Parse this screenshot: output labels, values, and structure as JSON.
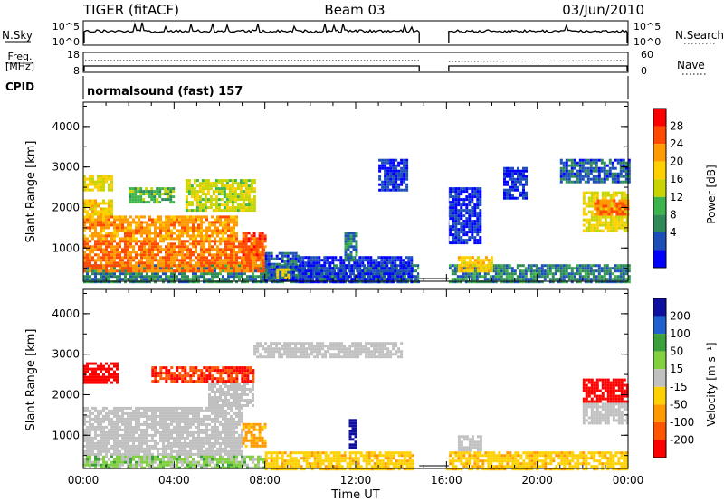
{
  "header": {
    "radar": "TIGER (fitACF)",
    "beam": "Beam 03",
    "date": "03/Jun/2010"
  },
  "panels": {
    "nsky": {
      "label": "N.Sky",
      "left_ticks": [
        "10^5",
        "10^0"
      ],
      "right_label": "N.Search",
      "right_ticks": [
        "10^5",
        "10^0"
      ]
    },
    "freq": {
      "label_line1": "Freq.",
      "label_line2": "[MHz]",
      "left_ticks": [
        "18",
        "8"
      ],
      "right_label": "Nave",
      "right_ticks": [
        "60",
        "0"
      ]
    },
    "cpid": {
      "label": "CPID",
      "value": "normalsound (fast) 157"
    },
    "power": {
      "ylabel": "Slant Range [km]",
      "cbar_label": "Power [dB]",
      "cbar_ticks": [
        "28",
        "24",
        "20",
        "16",
        "12",
        "8",
        "4"
      ],
      "cbar_colors": [
        "#ff0000",
        "#ff4a00",
        "#ff9a00",
        "#ffd000",
        "#c8d400",
        "#3cb44b",
        "#2e8b57",
        "#1c4fb8",
        "#0000ff"
      ]
    },
    "velocity": {
      "ylabel": "Slant Range [km]",
      "cbar_label": "Velocity [m s⁻¹]",
      "cbar_ticks": [
        "200",
        "100",
        "50",
        "15",
        "-15",
        "-50",
        "-100",
        "-200"
      ],
      "cbar_colors": [
        "#1010a0",
        "#2060d0",
        "#3aa03a",
        "#80d040",
        "#c0c0c0",
        "#ffd000",
        "#ff9900",
        "#ff5500",
        "#ff0000"
      ]
    },
    "colors": {
      "ground_scatter": "#b8b8b8"
    }
  },
  "chart_data": [
    {
      "type": "heatmap",
      "name": "power",
      "xlabel": "Time UT",
      "ylabel": "Slant Range [km]",
      "xlim": [
        0,
        24
      ],
      "ylim": [
        180,
        4600
      ],
      "xticks": [
        "00:00",
        "04:00",
        "08:00",
        "12:00",
        "16:00",
        "20:00",
        "00:00"
      ],
      "yticks": [
        1000,
        2000,
        3000,
        4000
      ],
      "data_gap_hours": [
        14.8,
        16.1
      ],
      "regions": [
        {
          "t0": 0.0,
          "t1": 14.8,
          "r0": 180,
          "r1": 600,
          "level": 8
        },
        {
          "t0": 16.1,
          "t1": 24.0,
          "r0": 180,
          "r1": 600,
          "level": 8
        },
        {
          "t0": 0.0,
          "t1": 8.0,
          "r0": 400,
          "r1": 1200,
          "level": 26
        },
        {
          "t0": 0.0,
          "t1": 6.8,
          "r0": 1200,
          "r1": 1800,
          "level": 24
        },
        {
          "t0": 0.0,
          "t1": 1.3,
          "r0": 1800,
          "r1": 2200,
          "level": 20
        },
        {
          "t0": 7.0,
          "t1": 8.0,
          "r0": 700,
          "r1": 1400,
          "level": 28
        },
        {
          "t0": 0.0,
          "t1": 1.3,
          "r0": 2400,
          "r1": 2800,
          "level": 18
        },
        {
          "t0": 4.5,
          "t1": 7.5,
          "r0": 1900,
          "r1": 2700,
          "level": 16
        },
        {
          "t0": 2.0,
          "t1": 4.0,
          "r0": 2100,
          "r1": 2500,
          "level": 12
        },
        {
          "t0": 8.0,
          "t1": 9.5,
          "r0": 180,
          "r1": 900,
          "level": 6
        },
        {
          "t0": 8.5,
          "t1": 9.0,
          "r0": 250,
          "r1": 500,
          "level": 20
        },
        {
          "t0": 9.5,
          "t1": 14.5,
          "r0": 180,
          "r1": 800,
          "level": 4
        },
        {
          "t0": 11.5,
          "t1": 12.0,
          "r0": 700,
          "r1": 1400,
          "level": 8
        },
        {
          "t0": 13.0,
          "t1": 14.3,
          "r0": 2400,
          "r1": 3200,
          "level": 4
        },
        {
          "t0": 16.5,
          "t1": 18.0,
          "r0": 400,
          "r1": 800,
          "level": 20
        },
        {
          "t0": 16.0,
          "t1": 17.5,
          "r0": 1100,
          "r1": 2500,
          "level": 4
        },
        {
          "t0": 18.5,
          "t1": 19.5,
          "r0": 2200,
          "r1": 3000,
          "level": 4
        },
        {
          "t0": 22.0,
          "t1": 24.0,
          "r0": 1400,
          "r1": 2400,
          "level": 18
        },
        {
          "t0": 22.5,
          "t1": 24.0,
          "r0": 1800,
          "r1": 2200,
          "level": 26
        },
        {
          "t0": 21.0,
          "t1": 24.0,
          "r0": 2600,
          "r1": 3200,
          "level": 6
        }
      ]
    },
    {
      "type": "heatmap",
      "name": "velocity",
      "xlabel": "Time UT",
      "ylabel": "Slant Range [km]",
      "xlim": [
        0,
        24
      ],
      "ylim": [
        180,
        4600
      ],
      "xticks": [
        "00:00",
        "04:00",
        "08:00",
        "12:00",
        "16:00",
        "20:00",
        "00:00"
      ],
      "yticks": [
        1000,
        2000,
        3000,
        4000
      ],
      "data_gap_hours": [
        14.8,
        16.1
      ],
      "regions": [
        {
          "t0": 0.0,
          "t1": 7.0,
          "r0": 500,
          "r1": 1700,
          "level": 0
        },
        {
          "t0": 0.0,
          "t1": 1.5,
          "r0": 2300,
          "r1": 2800,
          "level": -180
        },
        {
          "t0": 3.0,
          "t1": 7.5,
          "r0": 2300,
          "r1": 2700,
          "level": -150
        },
        {
          "t0": 5.5,
          "t1": 7.5,
          "r0": 1700,
          "r1": 2300,
          "level": 0
        },
        {
          "t0": 7.0,
          "t1": 8.0,
          "r0": 700,
          "r1": 1300,
          "level": -60
        },
        {
          "t0": 0.0,
          "t1": 8.0,
          "r0": 180,
          "r1": 500,
          "level": 20
        },
        {
          "t0": 8.0,
          "t1": 14.5,
          "r0": 180,
          "r1": 600,
          "level": -40
        },
        {
          "t0": 11.7,
          "t1": 12.0,
          "r0": 700,
          "r1": 1400,
          "level": 200
        },
        {
          "t0": 16.0,
          "t1": 24.0,
          "r0": 180,
          "r1": 600,
          "level": -40
        },
        {
          "t0": 16.5,
          "t1": 17.5,
          "r0": 600,
          "r1": 1000,
          "level": 0
        },
        {
          "t0": 22.0,
          "t1": 24.0,
          "r0": 1800,
          "r1": 2400,
          "level": -200
        },
        {
          "t0": 22.0,
          "t1": 24.0,
          "r0": 1300,
          "r1": 1800,
          "level": 0
        },
        {
          "t0": 7.5,
          "t1": 14.0,
          "r0": 2900,
          "r1": 3300,
          "level": 0
        }
      ]
    }
  ]
}
